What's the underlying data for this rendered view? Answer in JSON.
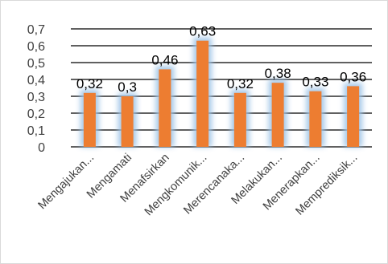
{
  "chart_data": {
    "type": "bar",
    "title": "",
    "xlabel": "",
    "ylabel": "",
    "categories": [
      "Mengajukan...",
      "Mengamati",
      "Menafsirkan",
      "Mengkomunik...",
      "Merencanaka...",
      "Melakukan...",
      "Menerapkan...",
      "Memprediksik..."
    ],
    "values": [
      0.32,
      0.3,
      0.46,
      0.63,
      0.32,
      0.38,
      0.33,
      0.36
    ],
    "data_labels": [
      "0,32",
      "0,3",
      "0,46",
      "0,63",
      "0,32",
      "0,38",
      "0,33",
      "0,36"
    ],
    "y_ticks": [
      0,
      0.1,
      0.2,
      0.3,
      0.4,
      0.5,
      0.6,
      0.7
    ],
    "y_tick_labels": [
      "0",
      "0,1",
      "0,2",
      "0,3",
      "0,4",
      "0,5",
      "0,6",
      "0,7"
    ],
    "ylim": [
      0,
      0.7
    ],
    "grid": true,
    "legend": "none",
    "colors": {
      "bar": "#ed7d31",
      "glow": "#9dc3e6",
      "grid": "#000000",
      "text": "#404040"
    }
  }
}
